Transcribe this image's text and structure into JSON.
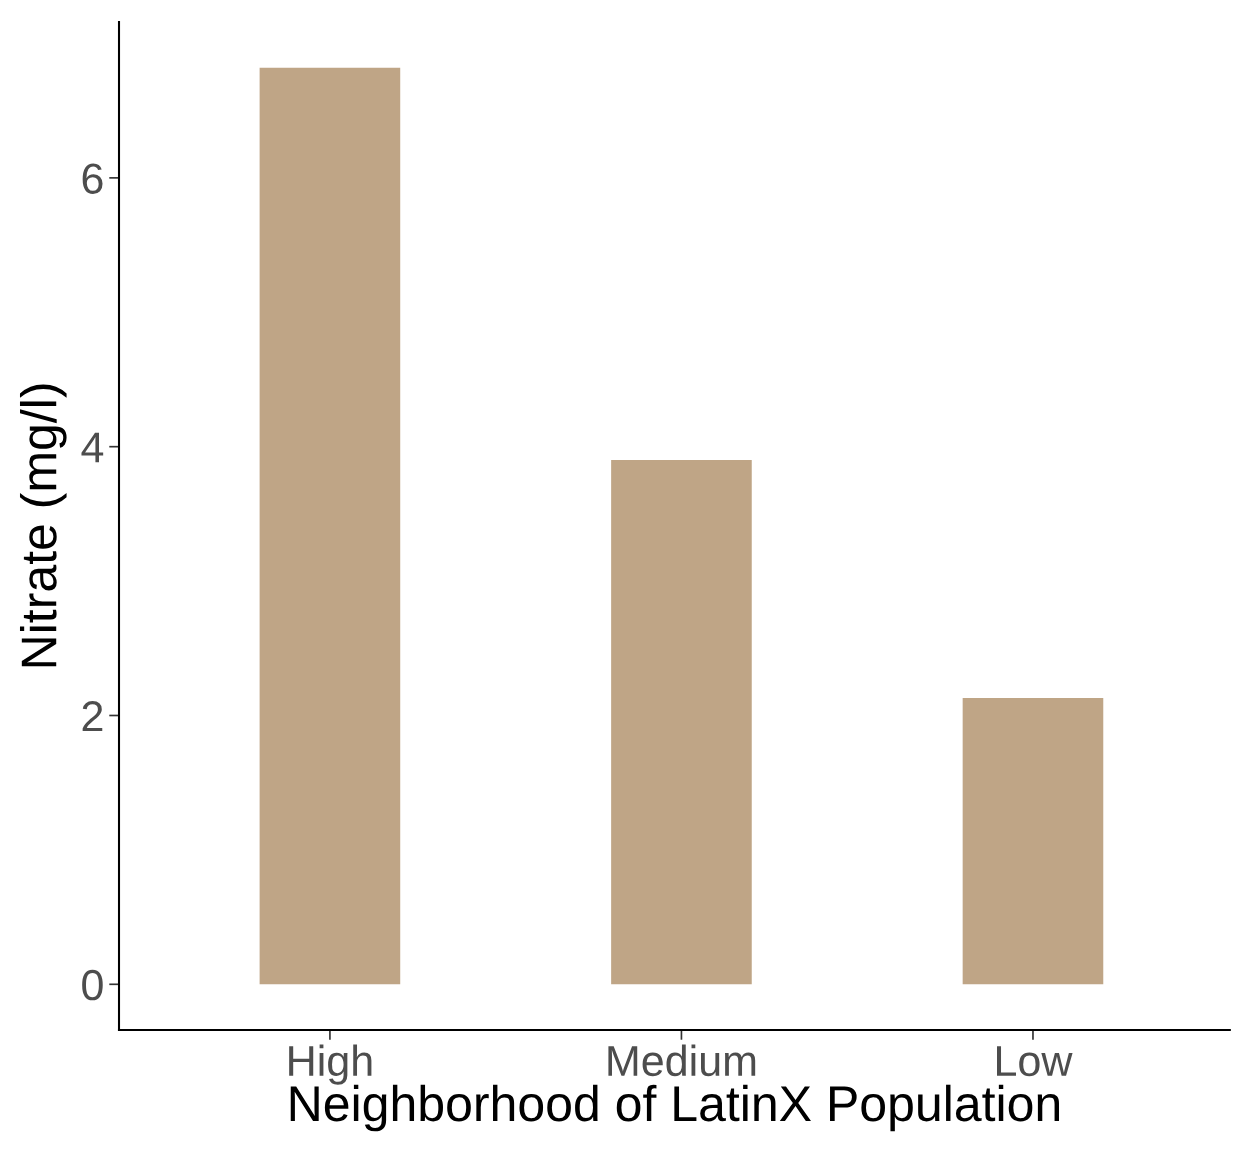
{
  "chart_data": {
    "type": "bar",
    "xlabel": "Neighborhood of LatinX Population",
    "ylabel": "Nitrate (mg/l)",
    "categories": [
      "High",
      "Medium",
      "Low"
    ],
    "values": [
      6.82,
      3.9,
      2.13
    ],
    "color": "#bfa586",
    "ylim": [
      -0.34,
      7.16
    ],
    "yticks": [
      0,
      2,
      4,
      6
    ],
    "grid": false,
    "legend": false
  }
}
